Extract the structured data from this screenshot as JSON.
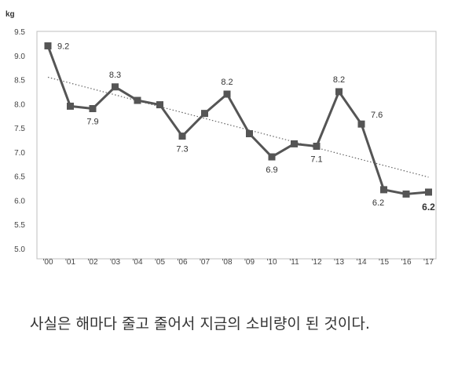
{
  "chart_data": {
    "type": "line",
    "ylabel": "kg",
    "ylim": [
      5.0,
      9.5
    ],
    "yticks": [
      "9.5",
      "9.0",
      "8.5",
      "8.0",
      "7.5",
      "7.0",
      "6.5",
      "6.0",
      "5.5",
      "5.0"
    ],
    "categories": [
      "'00",
      "'01",
      "'02",
      "'03",
      "'04",
      "'05",
      "'06",
      "'07",
      "'08",
      "'09",
      "'10",
      "'11",
      "'12",
      "'13",
      "'14",
      "'15",
      "'16",
      "'17"
    ],
    "series": [
      {
        "values": [
          9.2,
          7.95,
          7.9,
          8.35,
          8.07,
          7.98,
          7.33,
          7.8,
          8.2,
          7.38,
          6.9,
          7.17,
          7.12,
          8.25,
          7.58,
          6.22,
          6.13,
          6.17
        ],
        "color": "#555555"
      }
    ],
    "data_labels": [
      {
        "index": 0,
        "text": "9.2"
      },
      {
        "index": 2,
        "text": "7.9"
      },
      {
        "index": 3,
        "text": "8.3"
      },
      {
        "index": 6,
        "text": "7.3"
      },
      {
        "index": 8,
        "text": "8.2"
      },
      {
        "index": 10,
        "text": "6.9"
      },
      {
        "index": 12,
        "text": "7.1"
      },
      {
        "index": 13,
        "text": "8.2"
      },
      {
        "index": 14,
        "text": "7.6"
      },
      {
        "index": 15,
        "text": "6.2"
      },
      {
        "index": 17,
        "text": "6.2",
        "bold": true
      }
    ],
    "trendline": {
      "start": 8.55,
      "end": 6.48,
      "style": "dotted"
    },
    "grid": false,
    "legend": "none"
  },
  "caption": {
    "text": "사실은 해마다 줄고 줄어서 지금의 소비량이 된 것이다."
  }
}
